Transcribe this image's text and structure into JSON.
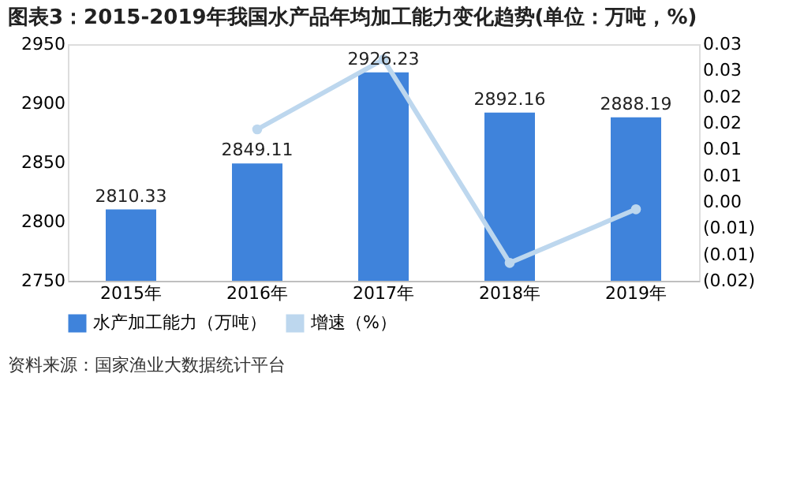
{
  "chart_data": {
    "type": "bar",
    "title": "图表3：2015-2019年我国水产品年均加工能力变化趋势(单位：万吨，%)",
    "categories": [
      "2015年",
      "2016年",
      "2017年",
      "2018年",
      "2019年"
    ],
    "series": [
      {
        "name": "水产加工能力（万吨）",
        "color": "#3f83db",
        "values": [
          2810.33,
          2849.11,
          2926.23,
          2892.16,
          2888.19
        ],
        "value_labels": [
          "2810.33",
          "2849.11",
          "2926.23",
          "2892.16",
          "2888.19"
        ]
      },
      {
        "name": "增速（%）",
        "type": "line",
        "axis": "y2",
        "color": "#bdd7ee",
        "marker": "circle",
        "values": [
          null,
          0.0138,
          0.0271,
          -0.0116,
          -0.0014
        ]
      }
    ],
    "ylim": [
      2750,
      2950
    ],
    "yticks": [
      2750,
      2800,
      2850,
      2900,
      2950
    ],
    "y2lim": [
      -0.015,
      0.03
    ],
    "y2ticks": [
      {
        "value": -0.015,
        "label": "(0.02)"
      },
      {
        "value": -0.01,
        "label": "(0.01)"
      },
      {
        "value": -0.005,
        "label": "(0.01)"
      },
      {
        "value": 0,
        "label": "0.00"
      },
      {
        "value": 0.005,
        "label": "0.01"
      },
      {
        "value": 0.01,
        "label": "0.01"
      },
      {
        "value": 0.015,
        "label": "0.02"
      },
      {
        "value": 0.02,
        "label": "0.02"
      },
      {
        "value": 0.025,
        "label": "0.03"
      },
      {
        "value": 0.03,
        "label": "0.03"
      }
    ],
    "grid": false,
    "legend": "bottom",
    "annotations": [
      "资料来源：国家渔业大数据统计平台"
    ]
  }
}
